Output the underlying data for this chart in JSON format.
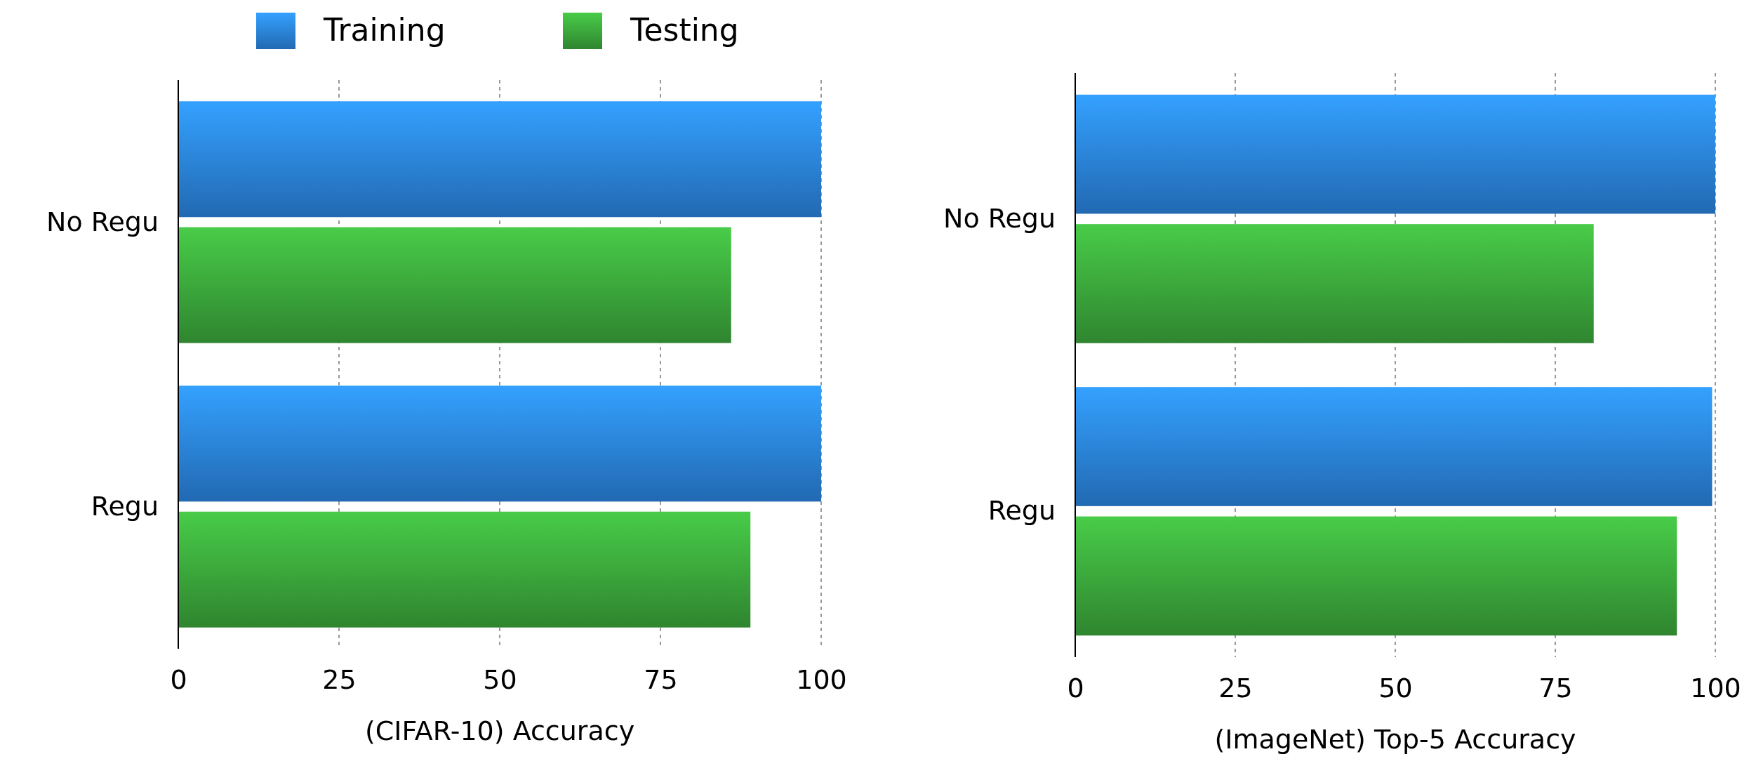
{
  "chart_data": [
    {
      "type": "bar",
      "orientation": "horizontal",
      "categories": [
        "No Regu",
        "Regu"
      ],
      "xlabel": "(CIFAR-10) Accuracy",
      "xlim": [
        0,
        100
      ],
      "xticks": [
        0,
        25,
        50,
        75,
        100
      ],
      "grid": "x",
      "legend": "top",
      "series": [
        {
          "name": "Training",
          "color": "#2a82dc",
          "values": [
            100,
            100
          ]
        },
        {
          "name": "Testing",
          "color": "#3aa53a",
          "values": [
            86,
            89
          ]
        }
      ]
    },
    {
      "type": "bar",
      "orientation": "horizontal",
      "categories": [
        "No Regu",
        "Regu"
      ],
      "xlabel": "(ImageNet) Top-5 Accuracy",
      "xlim": [
        0,
        100
      ],
      "xticks": [
        0,
        25,
        50,
        75,
        100
      ],
      "grid": "x",
      "series": [
        {
          "color": "#2a82dc",
          "values": [
            100,
            99.5
          ]
        },
        {
          "color": "#3aa53a",
          "values": [
            81,
            94
          ]
        }
      ]
    }
  ]
}
